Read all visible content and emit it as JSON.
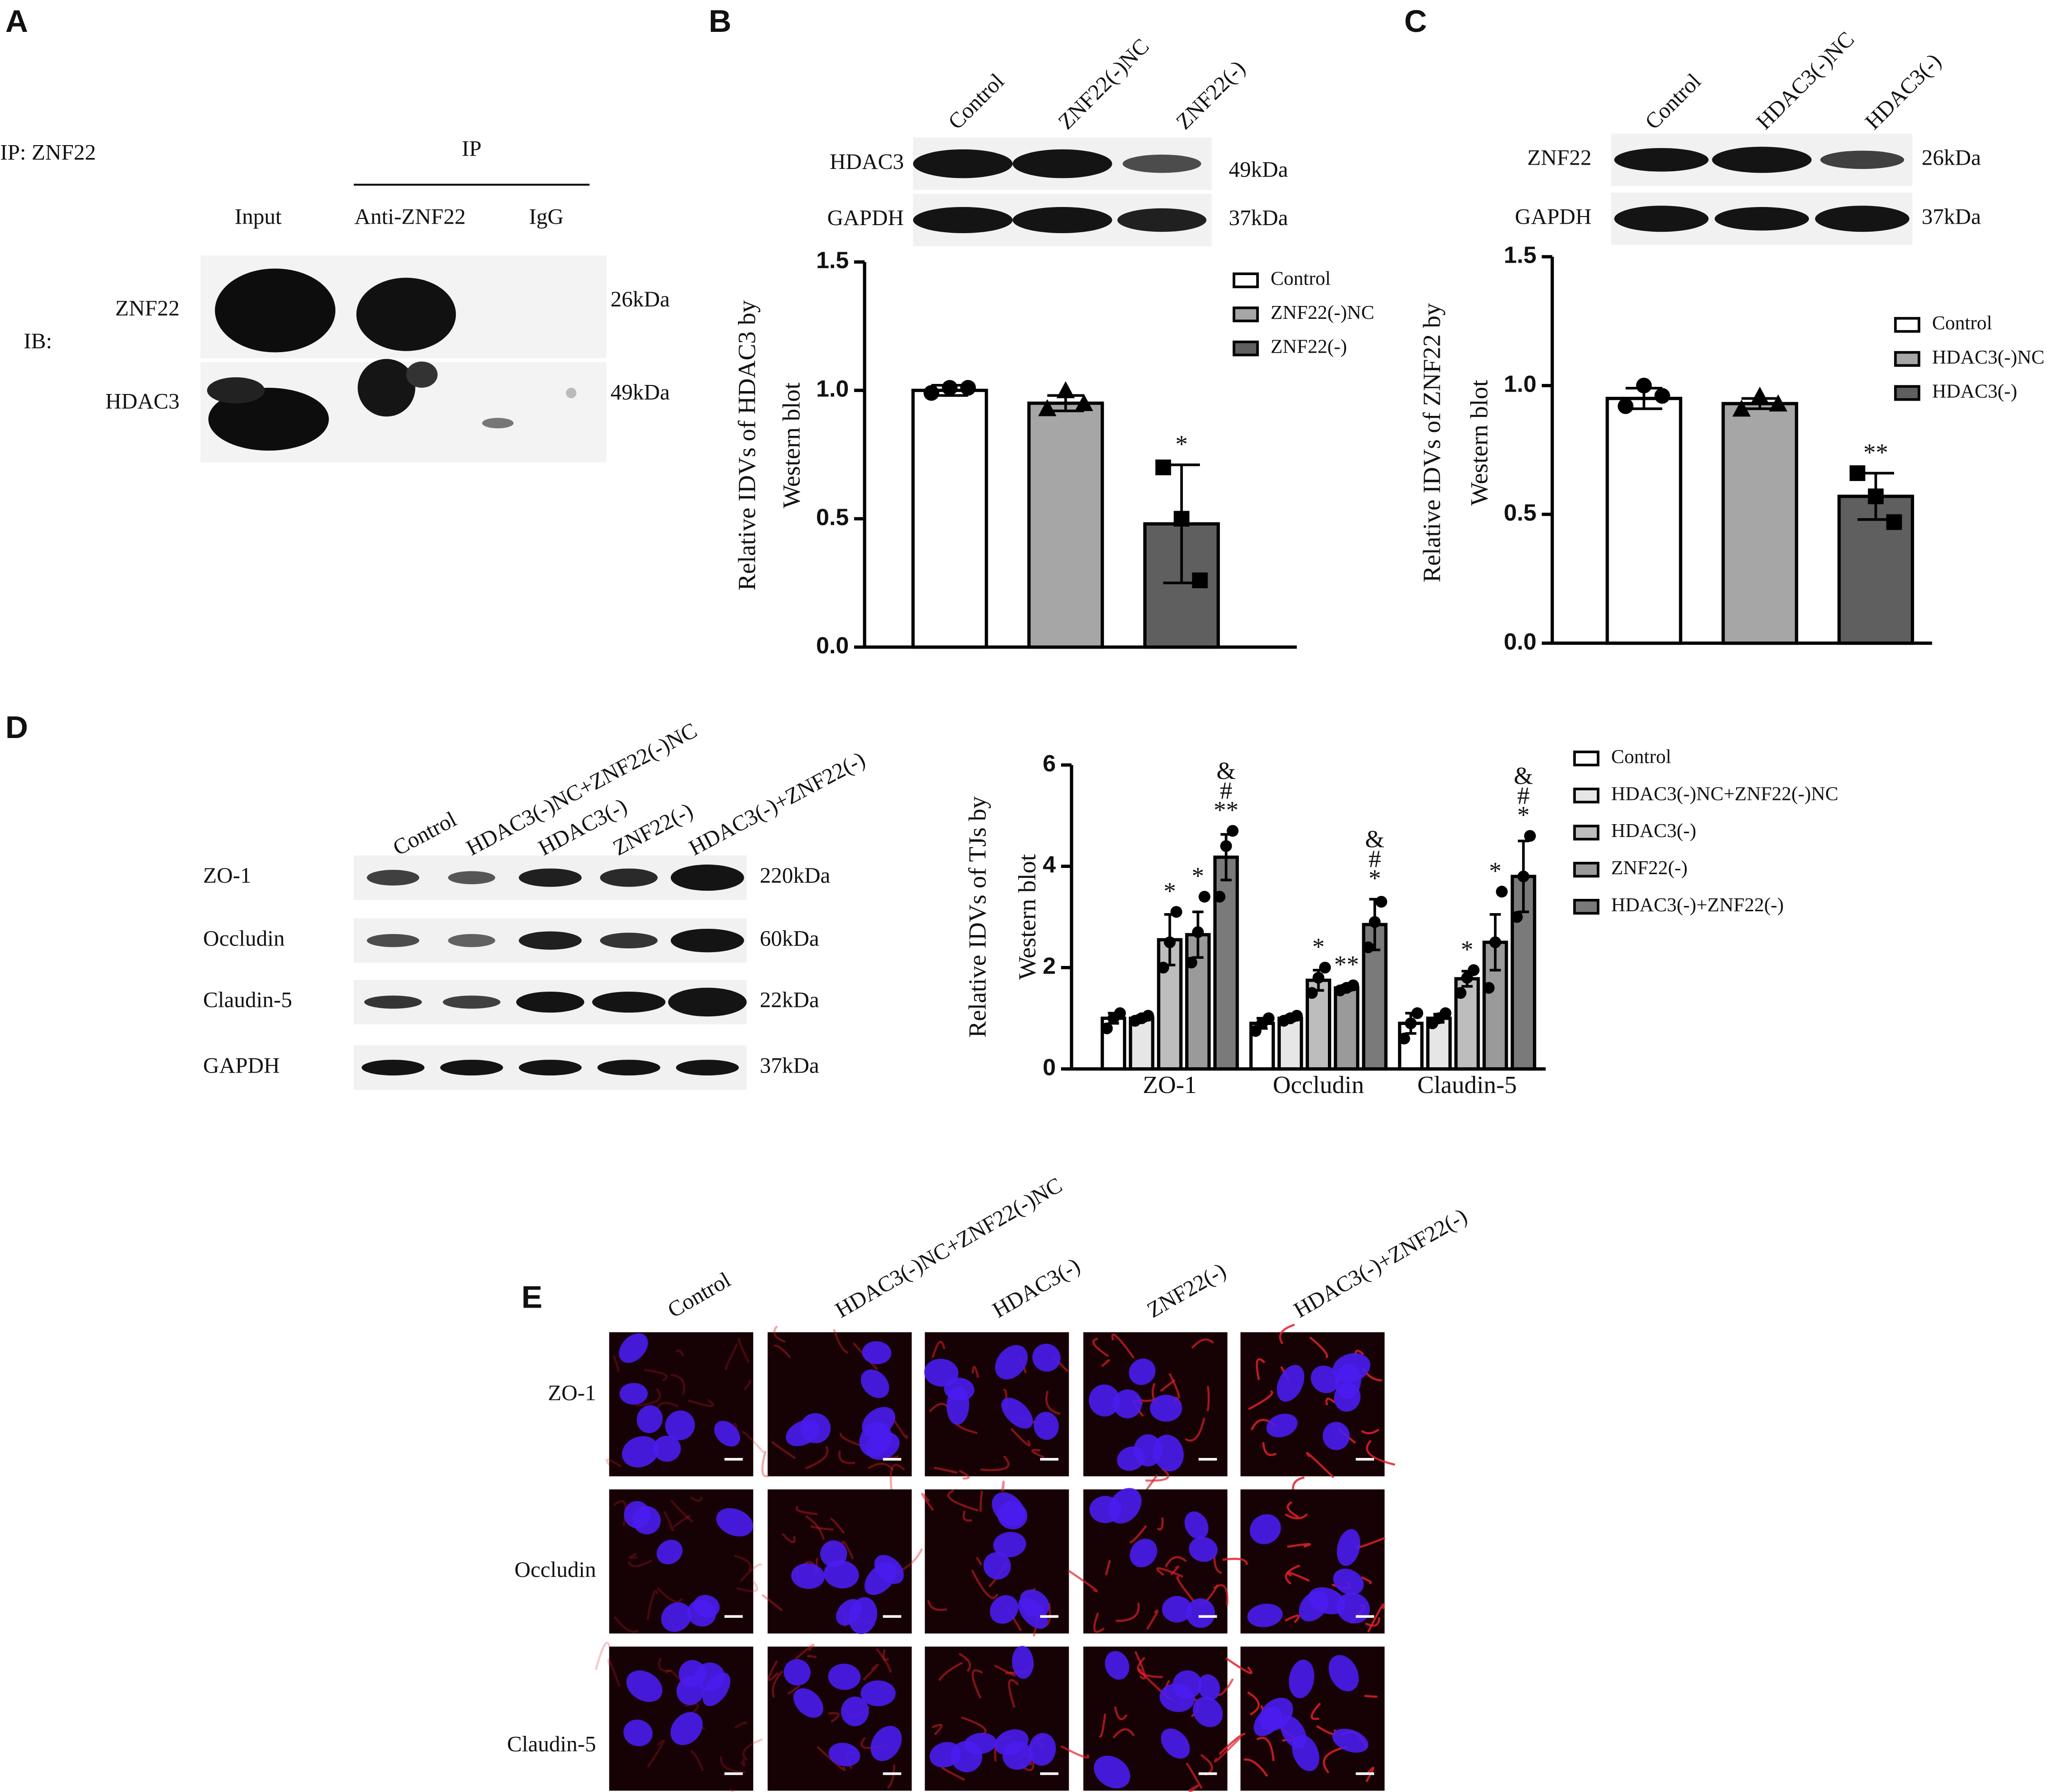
{
  "figure": {
    "panel_a": {
      "label": "A",
      "ip": "IP:  ZNF22",
      "ip_header": "IP",
      "lanes": [
        "Input",
        "Anti-ZNF22",
        "IgG"
      ],
      "ib": "IB:",
      "rows": [
        {
          "name": "ZNF22",
          "size": "26kDa"
        },
        {
          "name": "HDAC3",
          "size": "49kDa"
        }
      ]
    },
    "panel_b": {
      "label": "B",
      "lanes": [
        "Control",
        "ZNF22(-)NC",
        "ZNF22(-)"
      ],
      "rows": [
        {
          "name": "HDAC3",
          "size": "49kDa"
        },
        {
          "name": "GAPDH",
          "size": "37kDa"
        }
      ]
    },
    "panel_c": {
      "label": "C",
      "lanes": [
        "Control",
        "HDAC3(-)NC",
        "HDAC3(-)"
      ],
      "rows": [
        {
          "name": "ZNF22",
          "size": "26kDa"
        },
        {
          "name": "GAPDH",
          "size": "37kDa"
        }
      ]
    },
    "panel_d": {
      "label": "D",
      "lanes": [
        "Control",
        "HDAC3(-)NC+ZNF22(-)NC",
        "HDAC3(-)",
        "ZNF22(-)",
        "HDAC3(-)+ZNF22(-)"
      ],
      "rows": [
        {
          "name": "ZO-1",
          "size": "220kDa"
        },
        {
          "name": "Occludin",
          "size": "60kDa"
        },
        {
          "name": "Claudin-5",
          "size": "22kDa"
        },
        {
          "name": "GAPDH",
          "size": "37kDa"
        }
      ]
    },
    "panel_e": {
      "label": "E",
      "columns": [
        "Control",
        "HDAC3(-)NC+ZNF22(-)NC",
        "HDAC3(-)",
        "ZNF22(-)",
        "HDAC3(-)+ZNF22(-)"
      ],
      "rows": [
        "ZO-1",
        "Occludin",
        "Claudin-5"
      ]
    }
  },
  "chart_data": [
    {
      "type": "bar",
      "ylabel": [
        "Relative IDVs of  HDAC3 by",
        "Western blot"
      ],
      "categories": [
        null
      ],
      "ylim": [
        0,
        1.5
      ],
      "yticks": [
        {
          "value": 0,
          "label": "0.0"
        },
        0.5,
        {
          "value": 1,
          "label": "1.0"
        },
        1.5
      ],
      "series": [
        {
          "name": "Control",
          "color": "#ffffff",
          "marker": "circle",
          "values": [
            1.0
          ],
          "errors": [
            0.02
          ],
          "points": [
            [
              0.99,
              1.01,
              1.01
            ]
          ]
        },
        {
          "name": "ZNF22(-)NC",
          "color": "#a6a6a6",
          "marker": "triangle",
          "values": [
            0.95
          ],
          "errors": [
            0.03
          ],
          "points": [
            [
              0.93,
              1.0,
              0.95
            ]
          ]
        },
        {
          "name": "ZNF22(-)",
          "color": "#5f5f5f",
          "marker": "square",
          "values": [
            0.48
          ],
          "errors": [
            0.23
          ],
          "points": [
            [
              0.7,
              0.5,
              0.26
            ]
          ],
          "annotations": [
            "*"
          ]
        }
      ]
    },
    {
      "type": "bar",
      "ylabel": [
        "Relative IDVs of  ZNF22 by",
        "Western blot"
      ],
      "categories": [
        null
      ],
      "ylim": [
        0,
        1.5
      ],
      "yticks": [
        {
          "value": 0,
          "label": "0.0"
        },
        0.5,
        {
          "value": 1,
          "label": "1.0"
        },
        1.5
      ],
      "series": [
        {
          "name": "Control",
          "color": "#ffffff",
          "marker": "circle",
          "values": [
            0.95
          ],
          "errors": [
            0.04
          ],
          "points": [
            [
              0.92,
              1.0,
              0.96
            ]
          ]
        },
        {
          "name": "HDAC3(-)NC",
          "color": "#a6a6a6",
          "marker": "triangle",
          "values": [
            0.93
          ],
          "errors": [
            0.02
          ],
          "points": [
            [
              0.91,
              0.96,
              0.93
            ]
          ]
        },
        {
          "name": "HDAC3(-)",
          "color": "#5f5f5f",
          "marker": "square",
          "values": [
            0.57
          ],
          "errors": [
            0.09
          ],
          "points": [
            [
              0.66,
              0.57,
              0.47
            ]
          ],
          "annotations": [
            "**"
          ]
        }
      ]
    },
    {
      "type": "bar",
      "ylabel": [
        "Relative IDVs of  TJs by",
        "Western blot"
      ],
      "categories": [
        "ZO-1",
        "Occludin",
        "Claudin-5"
      ],
      "ylim": [
        0,
        6
      ],
      "yticks": [
        0,
        2,
        4,
        6
      ],
      "series": [
        {
          "name": "Control",
          "color": "#ffffff",
          "marker": "circle",
          "values": [
            1.0,
            0.9,
            0.9
          ],
          "errors": [
            0.1,
            0.1,
            0.2
          ],
          "points": [
            [
              0.8,
              1.0,
              1.1
            ],
            [
              0.75,
              0.9,
              1.0
            ],
            [
              0.6,
              0.9,
              1.1
            ]
          ]
        },
        {
          "name": "HDAC3(-)NC+ZNF22(-)NC",
          "color": "#e6e6e6",
          "marker": "circle",
          "values": [
            1.0,
            1.0,
            1.0
          ],
          "errors": [
            0.05,
            0.05,
            0.08
          ],
          "points": [
            [
              0.95,
              1.0,
              1.05
            ],
            [
              0.95,
              1.0,
              1.05
            ],
            [
              0.9,
              1.0,
              1.1
            ]
          ]
        },
        {
          "name": "HDAC3(-)",
          "color": "#bdbdbd",
          "marker": "circle",
          "values": [
            2.55,
            1.75,
            1.78
          ],
          "errors": [
            0.5,
            0.2,
            0.15
          ],
          "points": [
            [
              2.0,
              2.5,
              3.1
            ],
            [
              1.5,
              1.8,
              2.0
            ],
            [
              1.5,
              1.8,
              1.95
            ]
          ],
          "annotations": [
            "*",
            "*",
            "*"
          ]
        },
        {
          "name": "ZNF22(-)",
          "color": "#9a9a9a",
          "marker": "circle",
          "values": [
            2.65,
            1.6,
            2.5
          ],
          "errors": [
            0.45,
            0.05,
            0.55
          ],
          "points": [
            [
              2.1,
              2.7,
              3.4
            ],
            [
              1.55,
              1.6,
              1.65
            ],
            [
              1.6,
              2.5,
              3.5
            ]
          ],
          "annotations": [
            "*",
            "**",
            "*"
          ]
        },
        {
          "name": "HDAC3(-)+ZNF22(-)",
          "color": "#7a7a7a",
          "marker": "circle",
          "values": [
            4.18,
            2.85,
            3.8
          ],
          "errors": [
            0.45,
            0.5,
            0.7
          ],
          "points": [
            [
              3.4,
              4.4,
              4.7
            ],
            [
              2.4,
              2.9,
              3.3
            ],
            [
              3.0,
              3.8,
              4.6
            ]
          ],
          "annotations": [
            [
              "**",
              "#",
              "&"
            ],
            [
              "*",
              "#",
              "&"
            ],
            [
              "*",
              "#",
              "&"
            ]
          ]
        }
      ]
    }
  ]
}
